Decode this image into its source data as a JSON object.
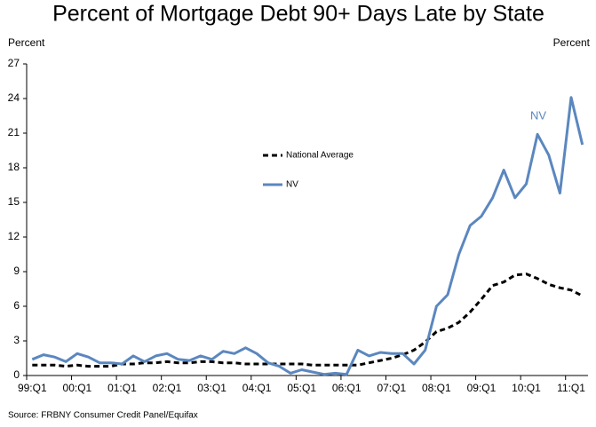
{
  "chart_data": {
    "type": "line",
    "title": "Percent of Mortgage Debt 90+ Days Late by State",
    "y_label_left": "Percent",
    "y_label_right": "Percent",
    "source": "Source: FRBNY Consumer Credit Panel/Equifax",
    "annotations": [
      {
        "text": "NV",
        "series": 1
      }
    ],
    "categories": [
      "99:Q1",
      null,
      null,
      null,
      "00:Q1",
      null,
      null,
      null,
      "01:Q1",
      null,
      null,
      null,
      "02:Q1",
      null,
      null,
      null,
      "03:Q1",
      null,
      null,
      null,
      "04:Q1",
      null,
      null,
      null,
      "05:Q1",
      null,
      null,
      null,
      "06:Q1",
      null,
      null,
      null,
      "07:Q1",
      null,
      null,
      null,
      "08:Q1",
      null,
      null,
      null,
      "09:Q1",
      null,
      null,
      null,
      "10:Q1",
      null,
      null,
      null,
      "11:Q1",
      null
    ],
    "series": [
      {
        "name": "National Average",
        "color": "#000000",
        "style": "dashed",
        "values": [
          0.9,
          0.9,
          0.9,
          0.8,
          0.9,
          0.8,
          0.8,
          0.8,
          1.0,
          1.0,
          1.1,
          1.1,
          1.2,
          1.1,
          1.1,
          1.2,
          1.2,
          1.1,
          1.1,
          1.0,
          1.0,
          1.0,
          1.0,
          1.0,
          1.0,
          0.9,
          0.9,
          0.9,
          0.9,
          0.9,
          1.1,
          1.3,
          1.5,
          1.8,
          2.2,
          2.9,
          3.8,
          4.1,
          4.6,
          5.5,
          6.6,
          7.8,
          8.1,
          8.7,
          8.8,
          8.4,
          7.9,
          7.6,
          7.4,
          6.9
        ]
      },
      {
        "name": "NV",
        "color": "#5b87bf",
        "style": "solid",
        "values": [
          1.4,
          1.8,
          1.6,
          1.2,
          1.9,
          1.6,
          1.1,
          1.1,
          1.0,
          1.7,
          1.2,
          1.7,
          1.9,
          1.4,
          1.3,
          1.7,
          1.4,
          2.1,
          1.9,
          2.4,
          1.9,
          1.1,
          0.8,
          0.2,
          0.5,
          0.3,
          0.1,
          0.2,
          0.1,
          2.2,
          1.7,
          2.0,
          1.9,
          1.9,
          1.0,
          2.2,
          6.0,
          7.0,
          10.5,
          13.0,
          13.8,
          15.4,
          17.8,
          15.4,
          16.6,
          20.9,
          19.1,
          15.8,
          24.1,
          20.0
        ]
      }
    ],
    "ylim": [
      0,
      27
    ],
    "yticks": [
      0,
      3,
      6,
      9,
      12,
      15,
      18,
      21,
      24,
      27
    ],
    "grid": false
  }
}
